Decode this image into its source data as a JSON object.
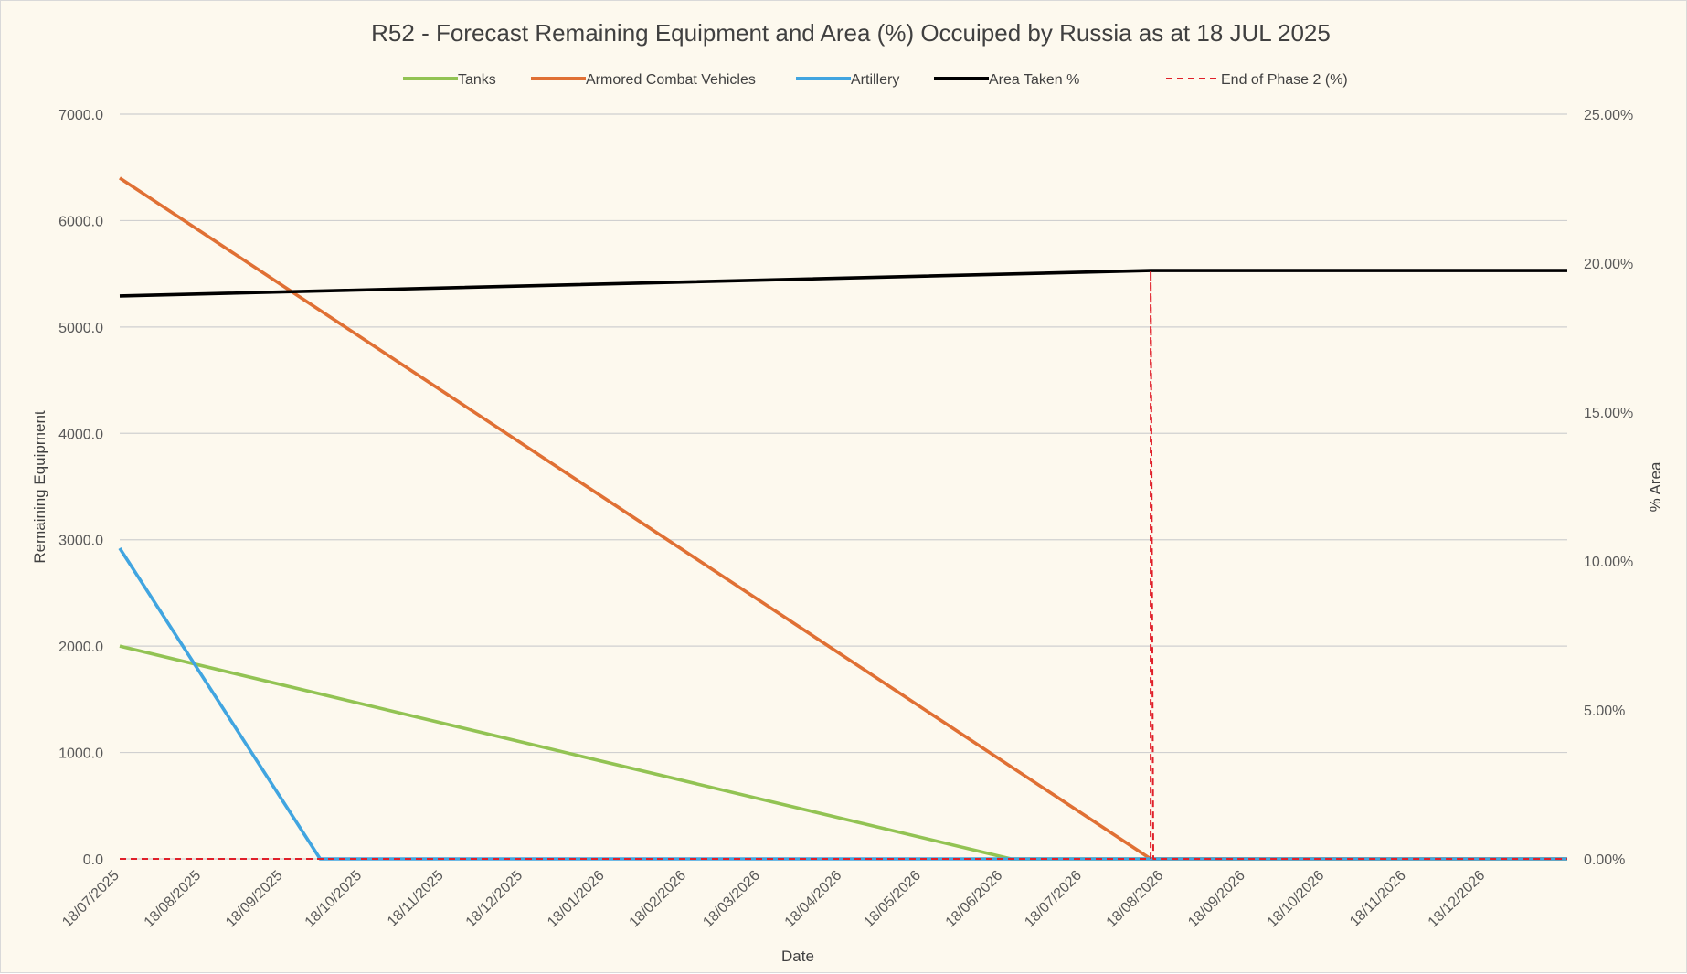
{
  "chart_data": {
    "type": "line",
    "title": "R52 - Forecast Remaining Equipment and Area (%) Occuiped by Russia as at 18 JUL 2025",
    "xlabel": "Date",
    "ylabel": "Remaining Equipment",
    "y2label": "% Area",
    "xlim": [
      "2025-07-18",
      "2027-01-18"
    ],
    "ylim": [
      0,
      7000
    ],
    "y2lim": [
      0,
      0.25
    ],
    "x_tick_labels": [
      "18/07/2025",
      "18/08/2025",
      "18/09/2025",
      "18/10/2025",
      "18/11/2025",
      "18/12/2025",
      "18/01/2026",
      "18/02/2026",
      "18/03/2026",
      "18/04/2026",
      "18/05/2026",
      "18/06/2026",
      "18/07/2026",
      "18/08/2026",
      "18/09/2026",
      "18/10/2026",
      "18/11/2026",
      "18/12/2026"
    ],
    "y_tick_labels": [
      "0.0",
      "1000.0",
      "2000.0",
      "3000.0",
      "4000.0",
      "5000.0",
      "6000.0",
      "7000.0"
    ],
    "y2_tick_labels": [
      "0.00%",
      "5.00%",
      "10.00%",
      "15.00%",
      "20.00%",
      "25.00%"
    ],
    "grid": true,
    "legend_position": "top",
    "series": [
      {
        "name": "Tanks",
        "axis": "left",
        "color": "#92c353",
        "style": "solid",
        "points": [
          [
            "2025-07-18",
            2000
          ],
          [
            "2026-06-21",
            0
          ],
          [
            "2027-01-18",
            0
          ]
        ]
      },
      {
        "name": "Armored Combat Vehicles",
        "axis": "left",
        "color": "#e07034",
        "style": "solid",
        "points": [
          [
            "2025-07-18",
            6400
          ],
          [
            "2026-08-13",
            0
          ],
          [
            "2027-01-18",
            0
          ]
        ]
      },
      {
        "name": "Artillery",
        "axis": "left",
        "color": "#41a5e0",
        "style": "solid",
        "points": [
          [
            "2025-07-18",
            2920
          ],
          [
            "2025-10-02",
            0
          ],
          [
            "2027-01-18",
            0
          ]
        ]
      },
      {
        "name": "Area Taken %",
        "axis": "right",
        "color": "#000000",
        "style": "solid",
        "points": [
          [
            "2025-07-18",
            0.189
          ],
          [
            "2026-08-13",
            0.1975
          ],
          [
            "2027-01-18",
            0.1975
          ]
        ]
      },
      {
        "name": "End of Phase 2 (%)",
        "axis": "right",
        "color": "#e0202a",
        "style": "dashed",
        "points": [
          [
            "2025-07-18",
            0
          ],
          [
            "2026-08-13",
            0
          ],
          [
            "2026-08-13",
            0.1975
          ],
          [
            "2026-08-14",
            0
          ],
          [
            "2027-01-18",
            0
          ]
        ]
      }
    ]
  }
}
